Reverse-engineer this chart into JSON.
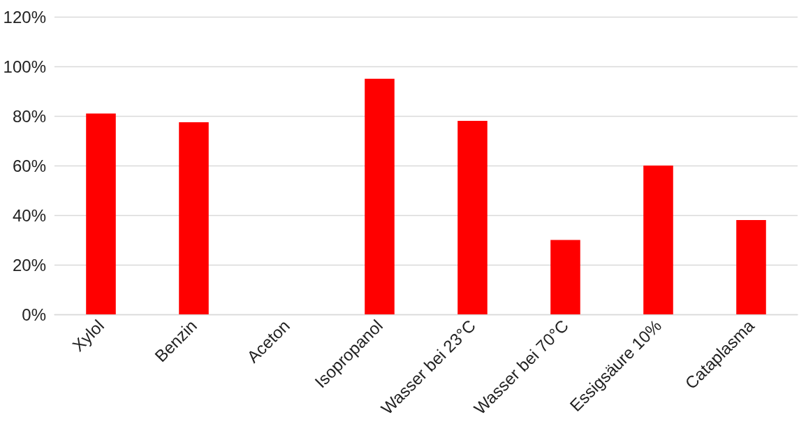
{
  "chart_data": {
    "type": "bar",
    "categories": [
      "Xylol",
      "Benzin",
      "Aceton",
      "Isopropanol",
      "Wasser bei 23°C",
      "Wasser bei 70°C",
      "Essigsäure 10%",
      "Cataplasma"
    ],
    "values": [
      81,
      77.5,
      0,
      95,
      78,
      30,
      60,
      38
    ],
    "color": "#ff0000",
    "ylim": [
      0,
      120
    ],
    "yticks": [
      {
        "value": 0,
        "label": "0%"
      },
      {
        "value": 20,
        "label": "20%"
      },
      {
        "value": 40,
        "label": "40%"
      },
      {
        "value": 60,
        "label": "60%"
      },
      {
        "value": 80,
        "label": "80%"
      },
      {
        "value": 100,
        "label": "100%"
      },
      {
        "value": 120,
        "label": "120%"
      }
    ],
    "grid": "y"
  }
}
